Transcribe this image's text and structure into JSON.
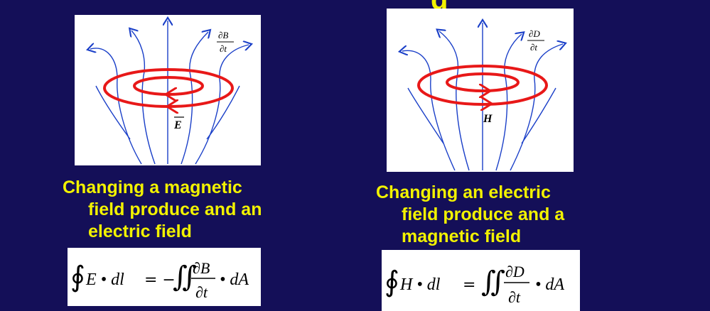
{
  "slide": {
    "title_fragment": "g"
  },
  "left_panel": {
    "diagram": {
      "rate_label_num": "∂B",
      "rate_label_den": "∂t",
      "field_label": "E"
    },
    "caption_lines": [
      "Changing a magnetic",
      "field produce and an",
      "electric field"
    ],
    "equation": {
      "lhs_integrand": "E • dl",
      "rhs_integrand_num": "∂B",
      "rhs_integrand_den": "∂t",
      "rhs_tail": "• dA",
      "sign": "= −"
    }
  },
  "right_panel": {
    "diagram": {
      "rate_label_num": "∂D",
      "rate_label_den": "∂t",
      "field_label": "H"
    },
    "caption_lines": [
      "Changing an electric",
      "field produce and a",
      "magnetic field"
    ],
    "equation": {
      "lhs_integrand": "H • dl",
      "rhs_integrand_num": "∂D",
      "rhs_integrand_den": "∂t",
      "rhs_tail": "• dA",
      "sign": "="
    }
  },
  "colors": {
    "background": "#140f58",
    "caption_text": "#f2f200",
    "ring": "#e81818",
    "field_lines": "#1a3fc8"
  }
}
